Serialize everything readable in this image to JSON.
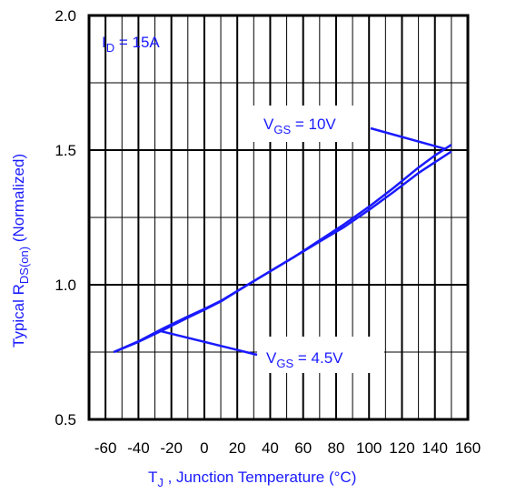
{
  "chart_data": {
    "type": "line",
    "title": "",
    "xlabel": {
      "main": "T",
      "sub": "J",
      "rest": " , Junction Temperature (°C)"
    },
    "ylabel": {
      "main": "Typical R",
      "sub": "DS(on)",
      "rest": "  (Normalized)"
    },
    "xlim": [
      -70,
      160
    ],
    "ylim": [
      0.5,
      2.0
    ],
    "x_ticks": [
      "-60",
      "-40",
      "-20",
      "0",
      "20",
      "40",
      "60",
      "80",
      "100",
      "120",
      "140",
      "160"
    ],
    "y_ticks": [
      "0.5",
      "1.0",
      "1.5",
      "2.0"
    ],
    "grid": true,
    "colors": {
      "series": "#1a1aff",
      "axis_text": "#1a1aff",
      "grid": "#000000"
    },
    "series": [
      {
        "x": [
          -55,
          -40,
          -25,
          -10,
          0,
          10,
          25,
          40,
          55,
          70,
          85,
          100,
          115,
          130,
          140,
          150
        ],
        "values": [
          0.75,
          0.79,
          0.838,
          0.882,
          0.91,
          0.94,
          0.995,
          1.05,
          1.105,
          1.165,
          1.225,
          1.29,
          1.36,
          1.435,
          1.48,
          1.52
        ]
      },
      {
        "x": [
          -55,
          -40,
          -25,
          -10,
          0,
          10,
          25,
          40,
          55,
          70,
          85,
          100,
          115,
          130,
          140,
          150
        ],
        "values": [
          0.75,
          0.788,
          0.832,
          0.878,
          0.907,
          0.938,
          0.995,
          1.05,
          1.105,
          1.16,
          1.215,
          1.278,
          1.345,
          1.415,
          1.455,
          1.495
        ]
      }
    ],
    "annotations": [
      {
        "main": "I",
        "sub": "D",
        "rest": " = 15A"
      },
      {
        "main": "V",
        "sub": "GS",
        "rest": " = 10V"
      },
      {
        "main": "V",
        "sub": "GS",
        "rest": " = 4.5V"
      }
    ]
  }
}
